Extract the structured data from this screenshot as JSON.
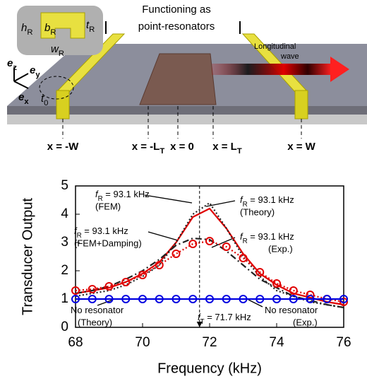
{
  "diagram": {
    "title_lines": [
      "Functioning as",
      "point-resonators"
    ],
    "inset_labels": [
      {
        "text": "h",
        "sub": "R"
      },
      {
        "text": "b",
        "sub": "R"
      },
      {
        "text": "t",
        "sub": "R"
      },
      {
        "text": "w",
        "sub": "R"
      }
    ],
    "axes_labels": [
      {
        "text": "e",
        "sub": "z"
      },
      {
        "text": "e",
        "sub": "y"
      },
      {
        "text": "e",
        "sub": "x"
      }
    ],
    "thickness_label": {
      "text": "t",
      "sub": "0"
    },
    "wave_lines": [
      "Longitudinal",
      "wave"
    ],
    "positions": [
      {
        "text": "x = -W"
      },
      {
        "text": "x = -L",
        "sub": "T"
      },
      {
        "text": "x = 0"
      },
      {
        "text": "x = L",
        "sub": "T"
      },
      {
        "text": "x = W"
      }
    ]
  },
  "chart_data": {
    "type": "line",
    "x_label": "Frequency (kHz)",
    "y_label": "Transducer Output",
    "xlim": [
      68,
      76
    ],
    "ylim": [
      0,
      5
    ],
    "xticks": [
      68,
      70,
      72,
      74,
      76
    ],
    "yticks": [
      0,
      1,
      2,
      3,
      4,
      5
    ],
    "x": [
      68,
      68.5,
      69,
      69.5,
      70,
      70.5,
      71,
      71.5,
      72,
      72.5,
      73,
      73.5,
      74,
      74.5,
      75,
      75.5,
      76
    ],
    "series": [
      {
        "color": "#e00000",
        "style": "solid",
        "values": [
          1.2,
          1.3,
          1.4,
          1.6,
          1.9,
          2.3,
          3.0,
          3.9,
          4.2,
          3.5,
          2.6,
          1.9,
          1.5,
          1.2,
          1.05,
          0.9,
          0.8
        ]
      },
      {
        "color": "#222222",
        "style": "dotted",
        "values": [
          1.1,
          1.2,
          1.3,
          1.5,
          1.8,
          2.2,
          3.0,
          4.0,
          4.4,
          3.5,
          2.5,
          1.8,
          1.3,
          1.1,
          0.9,
          0.8,
          0.7
        ]
      },
      {
        "color": "#222222",
        "style": "dashdot",
        "values": [
          1.2,
          1.3,
          1.45,
          1.7,
          2.0,
          2.4,
          2.9,
          3.15,
          3.1,
          2.7,
          2.2,
          1.7,
          1.4,
          1.1,
          0.95,
          0.8,
          0.7
        ]
      },
      {
        "color": "#e00000",
        "style": "dotted",
        "marker": "circle",
        "values": [
          1.3,
          1.35,
          1.45,
          1.6,
          1.85,
          2.2,
          2.6,
          2.95,
          3.05,
          2.85,
          2.45,
          1.95,
          1.55,
          1.3,
          1.15,
          1.0,
          0.9
        ]
      },
      {
        "color": "#0000e0",
        "style": "solid",
        "values": [
          1,
          1,
          1,
          1,
          1,
          1,
          1,
          1,
          1,
          1,
          1,
          1,
          1,
          1,
          1,
          1,
          1
        ]
      },
      {
        "color": "#0000e0",
        "style": "none",
        "marker": "circle",
        "values": [
          1,
          1,
          1,
          1,
          1,
          1,
          1,
          1,
          1,
          1,
          1,
          1,
          1,
          1,
          1,
          1,
          1
        ]
      }
    ],
    "annotations": [
      {
        "text": "f",
        "sub": "R",
        "rest": " = 93.1 kHz",
        "line2": "(FEM)"
      },
      {
        "text": "f",
        "sub": "R",
        "rest": " = 93.1 kHz",
        "line2": "(Theory)"
      },
      {
        "text": "f",
        "sub": "R",
        "rest": " = 93.1 kHz",
        "line2": "(FEM+Damping)"
      },
      {
        "text": "f",
        "sub": "R",
        "rest": " = 93.1 kHz",
        "line2": "(Exp.)"
      },
      {
        "text": "No resonator",
        "line2": "(Theory)"
      },
      {
        "text": "No resonator",
        "line2": "(Exp.)"
      },
      {
        "text": "f",
        "sub": "T",
        "rest": " = 71.7 kHz",
        "x": 71.7
      }
    ]
  }
}
